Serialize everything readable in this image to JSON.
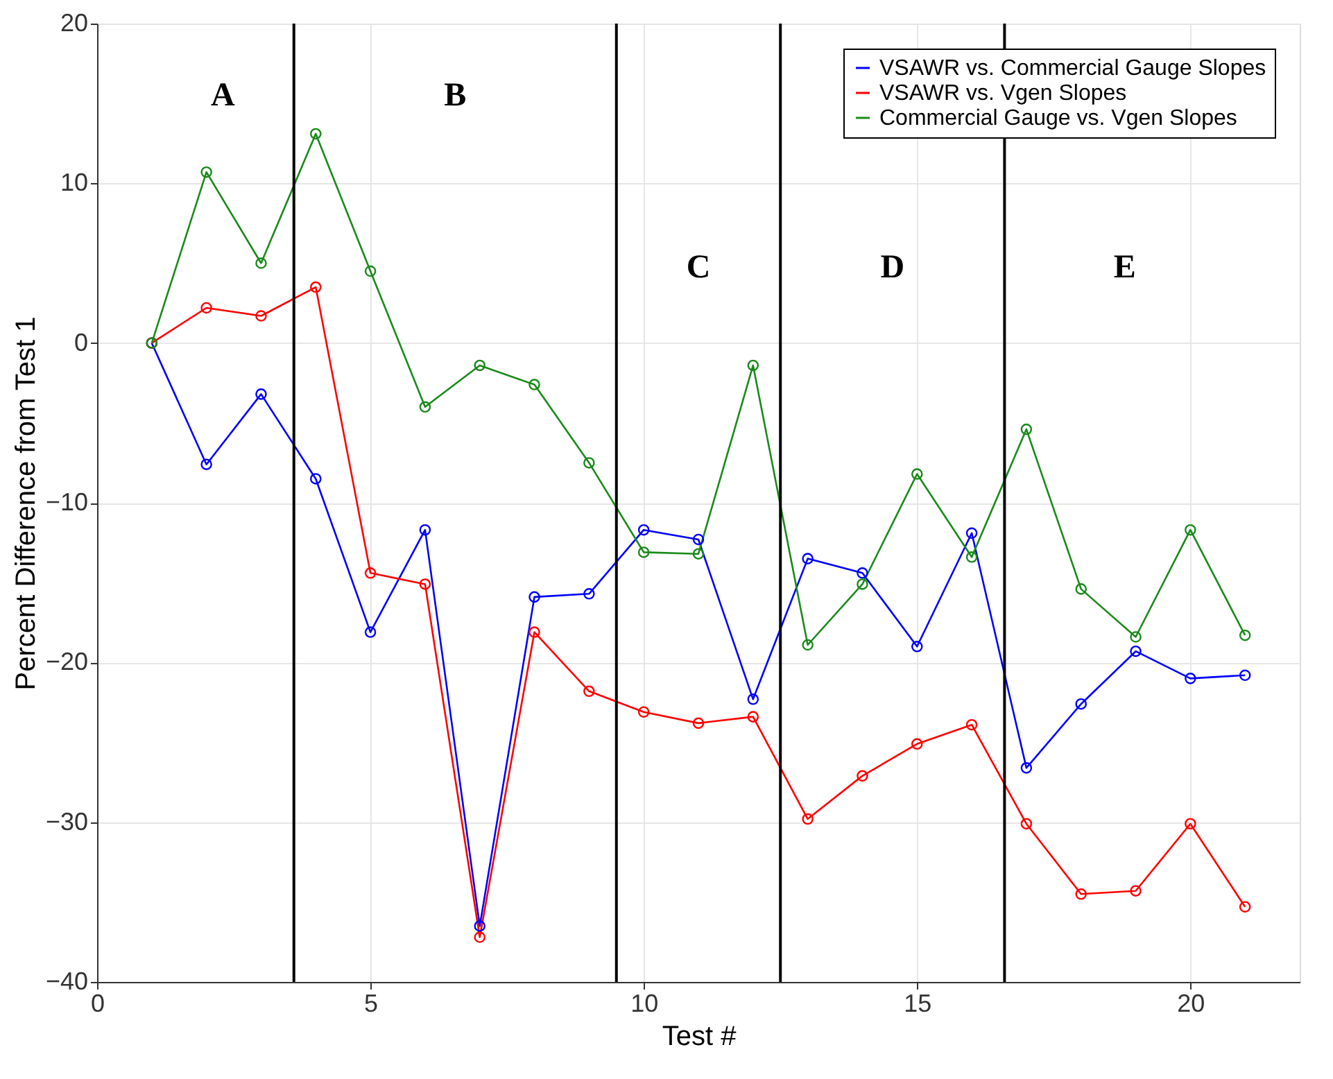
{
  "chart_data": {
    "type": "line",
    "xlabel": "Test #",
    "ylabel": "Percent Difference from Test 1",
    "x": [
      1,
      2,
      3,
      4,
      5,
      6,
      7,
      8,
      9,
      10,
      11,
      12,
      13,
      14,
      15,
      16,
      17,
      18,
      19,
      20,
      21
    ],
    "xlim": [
      0,
      22
    ],
    "xticks": [
      0,
      5,
      10,
      15,
      20
    ],
    "ylim": [
      -40,
      20
    ],
    "yticks": [
      -40,
      -30,
      -20,
      -10,
      0,
      10,
      20
    ],
    "grid": true,
    "legend": "top right",
    "marker": "circle",
    "line_style": "solid",
    "series": [
      {
        "name": "VSAWR vs. Commercial Gauge Slopes",
        "color": "#0000ff",
        "values": [
          0,
          -7.6,
          -3.2,
          -8.5,
          -18.1,
          -11.7,
          -36.5,
          -15.9,
          -15.7,
          -11.7,
          -12.3,
          -22.3,
          -13.5,
          -14.4,
          -19.0,
          -11.9,
          -26.6,
          -22.6,
          -19.3,
          -21.0,
          -20.8
        ]
      },
      {
        "name": "VSAWR vs. Vgen Slopes",
        "color": "#ff0000",
        "values": [
          0,
          2.2,
          1.7,
          3.5,
          -14.4,
          -15.1,
          -37.2,
          -18.1,
          -21.8,
          -23.1,
          -23.8,
          -23.4,
          -29.8,
          -27.1,
          -25.1,
          -23.9,
          -30.1,
          -34.5,
          -34.3,
          -30.1,
          -35.3
        ]
      },
      {
        "name": "Commercial Gauge vs. Vgen Slopes",
        "color": "#1a8a1a",
        "values": [
          0,
          10.7,
          5.0,
          13.1,
          4.5,
          -4.0,
          -1.4,
          -2.6,
          -7.5,
          -13.1,
          -13.2,
          -1.4,
          -18.9,
          -15.1,
          -8.2,
          -13.4,
          -5.4,
          -15.4,
          -18.4,
          -11.7,
          -18.3
        ]
      }
    ],
    "ref_lines": [
      {
        "axis": "x",
        "value": 3.6,
        "color": "#000000"
      },
      {
        "axis": "x",
        "value": 9.5,
        "color": "#000000"
      },
      {
        "axis": "x",
        "value": 12.5,
        "color": "#000000"
      },
      {
        "axis": "x",
        "value": 16.6,
        "color": "#000000"
      }
    ],
    "annotations": [
      "A",
      "B",
      "C",
      "D",
      "E"
    ]
  }
}
